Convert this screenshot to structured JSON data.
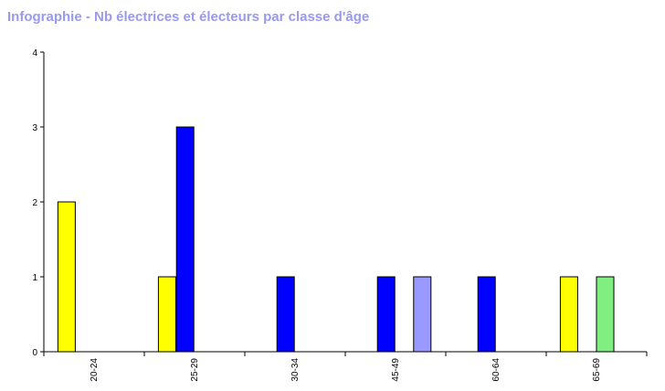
{
  "chart_data": {
    "type": "bar",
    "title": "Infographie - Nb électrices et électeurs par classe d'âge",
    "title_color": "#9999ee",
    "xlabel": "",
    "ylabel": "",
    "categories": [
      "20-24",
      "25-29",
      "30-34",
      "45-49",
      "60-64",
      "65-69"
    ],
    "yticks": [
      "0",
      "1",
      "2",
      "3",
      "4"
    ],
    "ylim": [
      0,
      4
    ],
    "grid": false,
    "legend": "none",
    "series": [
      {
        "color": "#ffff00",
        "values": [
          2,
          1,
          0,
          0,
          0,
          1
        ]
      },
      {
        "color": "#0000ff",
        "values": [
          0,
          3,
          1,
          1,
          1,
          0
        ]
      },
      {
        "color": "#9999ff",
        "values": [
          0,
          0,
          0,
          1,
          0,
          0
        ]
      },
      {
        "color": "#80ee80",
        "values": [
          0,
          0,
          0,
          0,
          0,
          1
        ]
      }
    ]
  }
}
